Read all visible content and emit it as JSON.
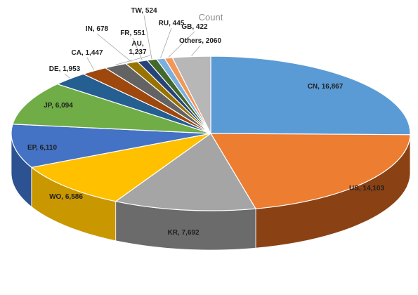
{
  "chart_data": {
    "type": "pie",
    "style": "3d",
    "title": "Count",
    "slices": [
      {
        "label": "CN",
        "value": 16867,
        "display": "CN, 16,867",
        "color": "#5b9bd5",
        "side": "#3e78ad"
      },
      {
        "label": "US",
        "value": 14103,
        "display": "US, 14,103",
        "color": "#ed7d31",
        "side": "#8a4214"
      },
      {
        "label": "KR",
        "value": 7692,
        "display": "KR, 7,692",
        "color": "#a5a5a5",
        "side": "#6b6b6b"
      },
      {
        "label": "WO",
        "value": 6586,
        "display": "WO, 6,586",
        "color": "#ffc000",
        "side": "#c99700"
      },
      {
        "label": "EP",
        "value": 6110,
        "display": "EP, 6,110",
        "color": "#4472c4",
        "side": "#2c5291"
      },
      {
        "label": "JP",
        "value": 6094,
        "display": "JP, 6,094",
        "color": "#70ad47",
        "side": "#4d7a30"
      },
      {
        "label": "DE",
        "value": 1953,
        "display": "DE, 1,953",
        "color": "#255e91",
        "side": "#163c5e"
      },
      {
        "label": "CA",
        "value": 1447,
        "display": "CA, 1,447",
        "color": "#9e480e",
        "side": "#6a2f08"
      },
      {
        "label": "AU",
        "value": 1237,
        "display": "AU,\n1,237",
        "color": "#636363",
        "side": "#3f3f3f"
      },
      {
        "label": "IN",
        "value": 678,
        "display": "IN, 678",
        "color": "#997300",
        "side": "#664c00"
      },
      {
        "label": "FR",
        "value": 551,
        "display": "FR, 551",
        "color": "#264478",
        "side": "#182c4e"
      },
      {
        "label": "TW",
        "value": 524,
        "display": "TW, 524",
        "color": "#43682b",
        "side": "#2b441c"
      },
      {
        "label": "RU",
        "value": 445,
        "display": "RU, 445",
        "color": "#7cafdd",
        "side": "#4f85b5"
      },
      {
        "label": "GB",
        "value": 422,
        "display": "GB, 422",
        "color": "#f1975a",
        "side": "#b86a33"
      },
      {
        "label": "Others",
        "value": 2060,
        "display": "Others, 2060",
        "color": "#b7b7b7",
        "side": "#7d7d7d"
      }
    ]
  }
}
